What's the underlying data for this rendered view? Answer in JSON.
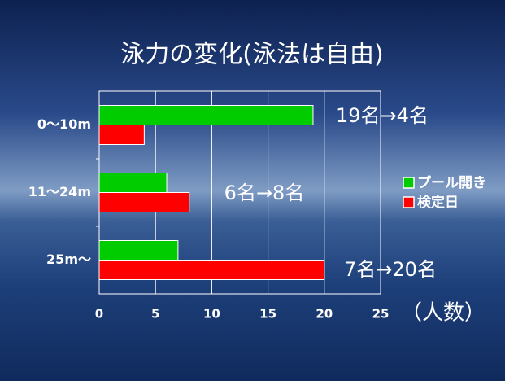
{
  "chart_data": {
    "type": "barh",
    "title": "泳力の変化(泳法は自由)",
    "categories": [
      "0～10m",
      "11～24m",
      "25m～"
    ],
    "series": [
      {
        "name": "プール開き",
        "color": "#00cc00",
        "values": [
          19,
          6,
          7
        ]
      },
      {
        "name": "検定日",
        "color": "#ff0000",
        "values": [
          4,
          8,
          20
        ]
      }
    ],
    "xlim": [
      0,
      25
    ],
    "xticks": [
      0,
      5,
      10,
      15,
      20,
      25
    ],
    "x_label": "（人数）",
    "grid": true,
    "legend": "right",
    "annotations": [
      "19名→4名",
      "6名→8名",
      "7名→20名"
    ]
  }
}
